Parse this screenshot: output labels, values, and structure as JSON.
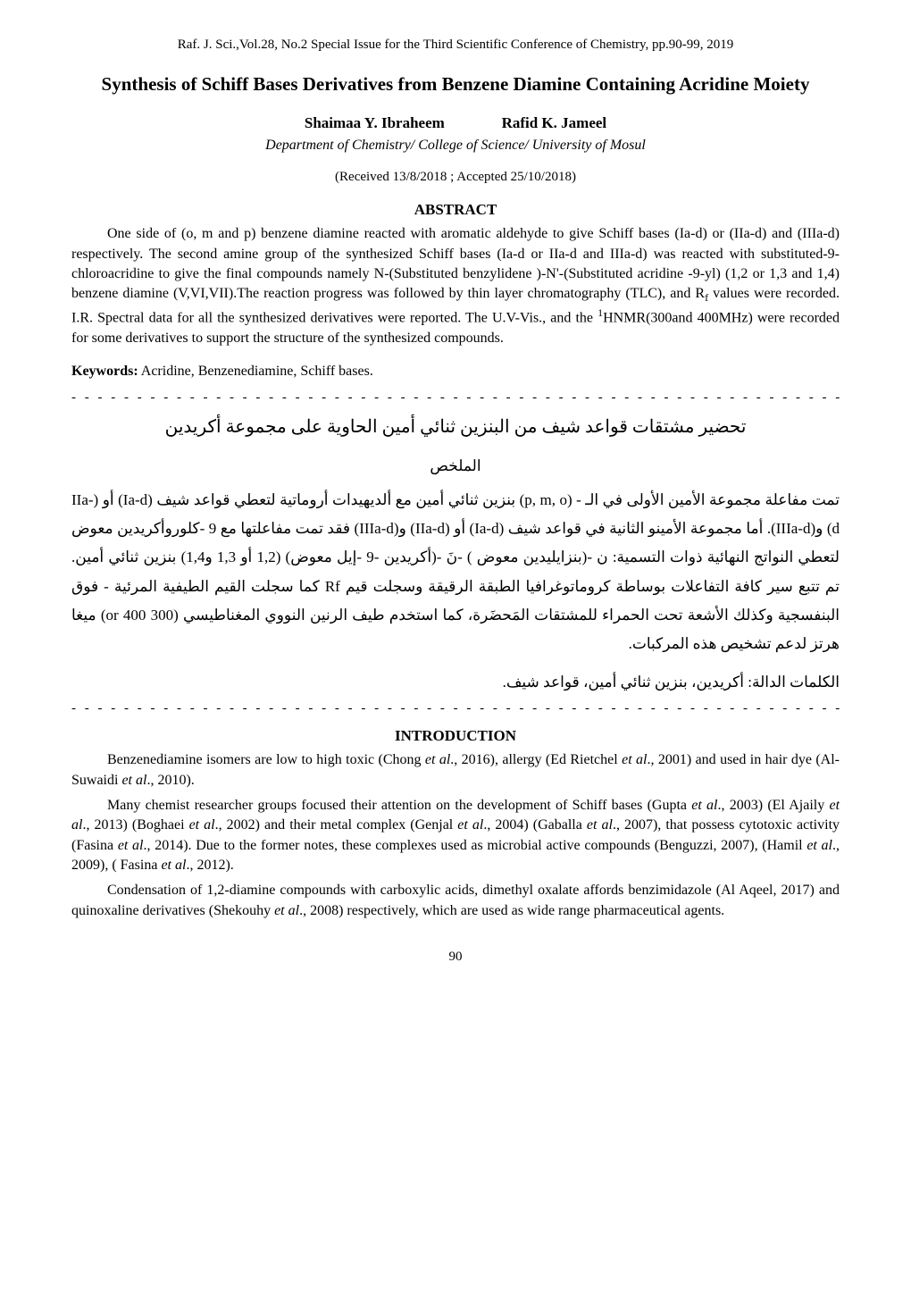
{
  "header": "Raf. J. Sci.,Vol.28, No.2 Special Issue for the Third Scientific Conference of Chemistry, pp.90-99, 2019",
  "title": "Synthesis of Schiff Bases Derivatives from Benzene Diamine Containing Acridine Moiety",
  "authors": {
    "author1": "Shaimaa Y. Ibraheem",
    "author2": "Rafid  K. Jameel"
  },
  "affiliation": "Department of Chemistry/ College of Science/ University of Mosul",
  "dates": "(Received  13/8/2018  ;  Accepted   25/10/2018)",
  "abstract_heading": "ABSTRACT",
  "abstract_text": "One side of (o, m and p) benzene diamine reacted with aromatic aldehyde to give Schiff bases (Ia-d) or (IIa-d) and (IIIa-d) respectively. The second amine group of the synthesized Schiff bases (Ia-d or IIa-d and IIIa-d) was reacted with substituted-9-chloroacridine to give the final compounds namely N-(Substituted benzylidene )-N'-(Substituted acridine -9-yl) (1,2 or 1,3 and 1,4) benzene diamine (V,VI,VII).The reaction progress was followed by thin layer chromatography (TLC), and Rf values were recorded. I.R. Spectral data for all the synthesized derivatives were reported. The U.V-Vis., and the 1HNMR(300and 400MHz) were recorded for some derivatives to support the structure of the synthesized compounds.",
  "keywords_label": "Keywords:",
  "keywords_text": " Acridine, Benzenediamine, Schiff bases.",
  "dashes": "- - - - - - - - - - - - - - - - - - - - - - - - - - - - - - - - - - - - - - - - - - - - - - - - - - - - - - - - - - - - - - - - - -",
  "arabic_title": "تحضير مشتقات قواعد شيف من البنزين ثنائي أمين الحاوية على مجموعة أكريدين",
  "arabic_abstract_heading": "الملخص",
  "arabic_abstract": "تمت مفاعلة مجموعة الأمين الأولى في الـ - (p, m, o) بنزين  ثنائي أمين مع ألديهيدات أروماتية لتعطي قواعد شيف (Ia-d) أو (IIa-d) و(IIIa-d). أما مجموعة الأمينو الثانية في قواعد شيف (Ia-d) أو (IIa-d) و(IIIa-d) فقد تمت مفاعلتها مع 9 -كلوروأكريدين معوض لتعطي النواتج النهائية ذوات التسمية: ن -(بنزايليدين معوض ) -نَ -(أكريدين -9 -إيل معوض) (1,2  أو  1,3 و1,4) بنزين ثنائي أمين. تم تتبع سير كافة التفاعلات بوساطة كروماتوغرافيا الطبقة الرقيقة وسجلت قيم Rf كما سجلت القيم الطيفية المرئية - فوق البنفسجية وكذلك الأشعة تحت الحمراء للمشتقات المَحضَرة، كما استخدم طيف الرنين النووي المغناطيسي (300 or 400)  ميغا هرتز لدعم تشخيص هذه المركبات.",
  "arabic_keywords": "الكلمات الدالة: أكريدين، بنزين ثنائي أمين، قواعد شيف.",
  "intro_heading": "INTRODUCTION",
  "intro_p1": "Benzenediamine isomers are low to high toxic (Chong et al., 2016), allergy (Ed Rietchel et al.,  2001) and used in hair dye (Al-Suwaidi et al., 2010).",
  "intro_p2": "Many chemist researcher groups focused their attention on the development of Schiff bases (Gupta et al., 2003) (El Ajaily et al., 2013) (Boghaei et al., 2002) and their metal complex (Genjal et al., 2004) (Gaballa et al., 2007), that possess cytotoxic activity (Fasina et al., 2014). Due to the former notes, these complexes used as microbial active compounds (Benguzzi, 2007), (Hamil et al., 2009), ( Fasina et al., 2012).",
  "intro_p3": "Condensation of 1,2-diamine compounds with carboxylic acids, dimethyl oxalate affords benzimidazole (Al Aqeel, 2017) and quinoxaline derivatives (Shekouhy et al., 2008) respectively, which are used as wide range pharmaceutical agents.",
  "page_number": "90"
}
